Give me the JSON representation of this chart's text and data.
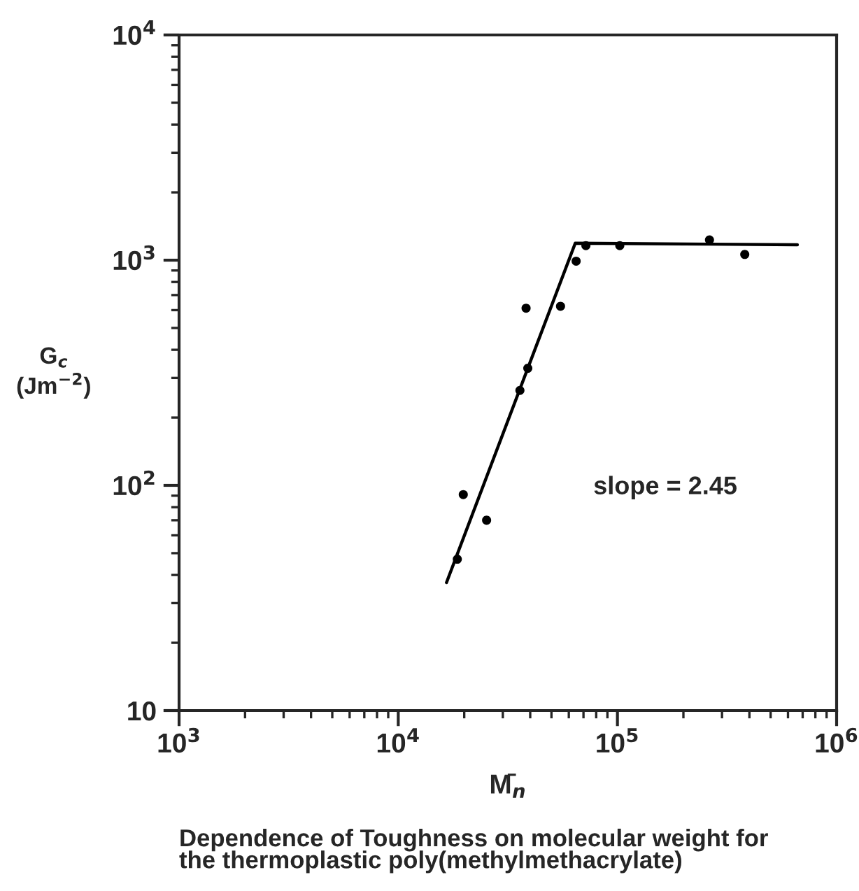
{
  "chart_data": {
    "type": "scatter",
    "xlabel": "M̄$_{n}$",
    "ylabel": "G$_{c}$\n(Jm$^{−2}$)",
    "log": "xy",
    "grid": false,
    "marker": "circle",
    "xlim": [
      1000,
      1000000
    ],
    "ylim": [
      10,
      10000
    ],
    "xticks": [
      {
        "value": 1000,
        "label": "10$^{3}$"
      },
      {
        "value": 10000,
        "label": "10$^{4}$"
      },
      {
        "value": 100000,
        "label": "10$^{5}$"
      },
      {
        "value": 1000000,
        "label": "10$^{6}$"
      }
    ],
    "yticks": [
      10,
      {
        "value": 100,
        "label": "10$^{2}$"
      },
      {
        "value": 1000,
        "label": "10$^{3}$"
      },
      {
        "value": 10000,
        "label": "10$^{4}$"
      }
    ],
    "series": [
      {
        "color": "#000000",
        "x": [
          18600,
          19800,
          25300,
          35900,
          39000,
          38300,
          55000,
          64800,
          71800,
          102500,
          263000,
          381000
        ],
        "values": [
          47,
          91,
          70,
          264,
          331,
          612,
          624,
          990,
          1160,
          1160,
          1230,
          1060
        ]
      },
      {
        "type": "line",
        "color": "#000000",
        "line_style": "solid",
        "marker": "none",
        "x": [
          16600,
          64200,
          662000
        ],
        "values": [
          37,
          1190,
          1170
        ]
      }
    ],
    "annotations": [
      "slope = 2.45",
      "Dependence of Toughness on molecular weight for\nthe thermoplastic poly(methylmethacrylate)"
    ]
  }
}
